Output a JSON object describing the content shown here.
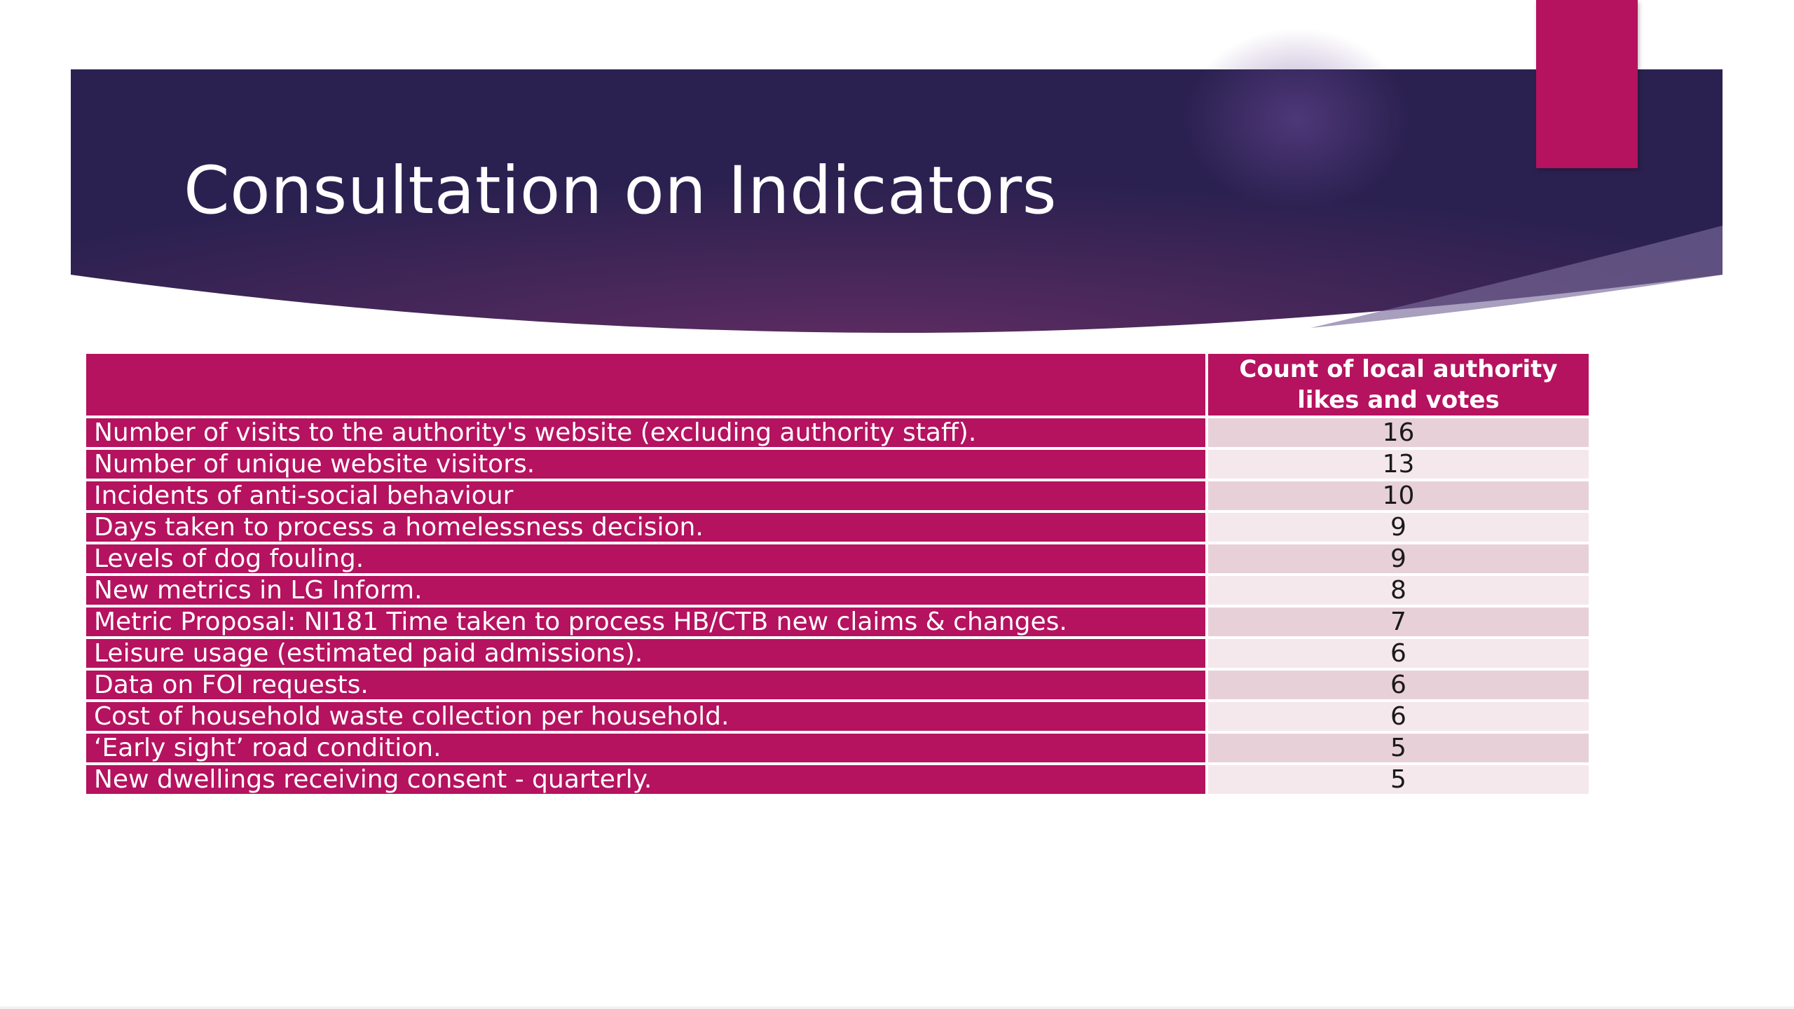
{
  "colors": {
    "banner_dark": "#2b2150",
    "banner_mid": "#5e2c62",
    "accent": "#b5125f",
    "table_header": "#b5125f",
    "label_cell": "#b5125f",
    "value_row_dark": "#e8d0d9",
    "value_row_light": "#f5e8ec"
  },
  "slide": {
    "title": "Consultation on Indicators"
  },
  "table": {
    "header": {
      "label_column": "",
      "count_column": "Count of local authority likes and votes"
    },
    "rows": [
      {
        "label": "Number of visits to the authority's website (excluding authority staff).",
        "count": "16"
      },
      {
        "label": "Number of unique website visitors.",
        "count": "13"
      },
      {
        "label": "Incidents of anti-social behaviour",
        "count": "10"
      },
      {
        "label": "Days taken to process a homelessness decision.",
        "count": "9"
      },
      {
        "label": "Levels of dog fouling.",
        "count": "9"
      },
      {
        "label": "New metrics in LG Inform.",
        "count": "8"
      },
      {
        "label": "Metric Proposal: NI181 Time taken to process HB/CTB new claims & changes.",
        "count": "7"
      },
      {
        "label": "Leisure usage (estimated paid admissions).",
        "count": "6"
      },
      {
        "label": "Data on FOI requests.",
        "count": "6"
      },
      {
        "label": "Cost of household waste collection per household.",
        "count": "6"
      },
      {
        "label": "‘Early sight’ road condition.",
        "count": "5"
      },
      {
        "label": "New dwellings receiving consent - quarterly.",
        "count": "5"
      }
    ]
  }
}
